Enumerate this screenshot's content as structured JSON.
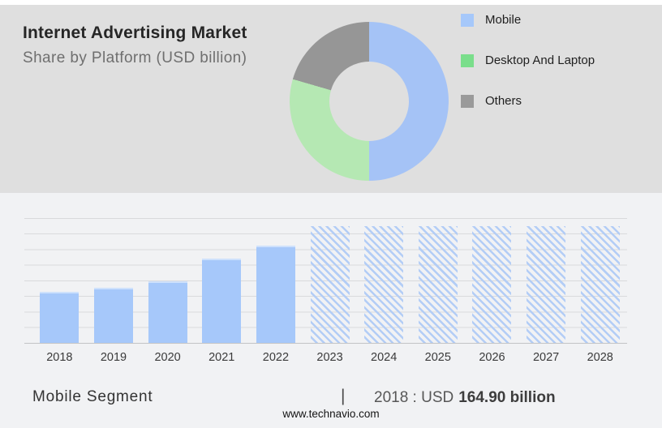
{
  "header": {
    "title": "Internet Advertising Market",
    "subtitle": "Share by Platform (USD billion)"
  },
  "legend": [
    {
      "label": "Mobile",
      "color": "#a6c8fa"
    },
    {
      "label": "Desktop And Laptop",
      "color": "#7ade8b"
    },
    {
      "label": "Others",
      "color": "#9a9a9a"
    }
  ],
  "footer": {
    "segment_label": "Mobile Segment",
    "divider": "|",
    "value_prefix": "2018 : USD",
    "value_bold": "164.90 billion",
    "website": "www.technavio.com"
  },
  "colors": {
    "top_panel_bg": "#dfdfdf",
    "lower_bg": "#f1f2f4",
    "gridline": "#d9dadc",
    "axis_line": "#c3c4c6"
  },
  "chart_data": [
    {
      "type": "pie",
      "donut": true,
      "title": "Internet Advertising Market - Share by Platform (USD billion)",
      "labels": [
        "Mobile",
        "Desktop And Laptop",
        "Others"
      ],
      "values_percent": [
        50,
        29.5,
        20.5
      ],
      "colors": [
        "#a5c3f6",
        "#b5e8b3",
        "#969696"
      ],
      "legend_position": "right"
    },
    {
      "type": "bar",
      "categories": [
        "2018",
        "2019",
        "2020",
        "2021",
        "2022",
        "2023",
        "2024",
        "2025",
        "2026",
        "2027",
        "2028"
      ],
      "values": [
        164.9,
        178,
        198,
        270,
        312,
        375,
        375,
        375,
        375,
        375,
        375
      ],
      "labeled_value": {
        "year": "2018",
        "text": "USD 164.90 billion"
      },
      "forecast_from_index": 5,
      "forecast_style": "hatched",
      "bar_color": "#a6c8fa",
      "hatch_color": "#b3cdf6",
      "ylim": [
        0,
        400
      ],
      "grid_step": 50,
      "grid": true,
      "xlabel": "",
      "ylabel": ""
    }
  ]
}
